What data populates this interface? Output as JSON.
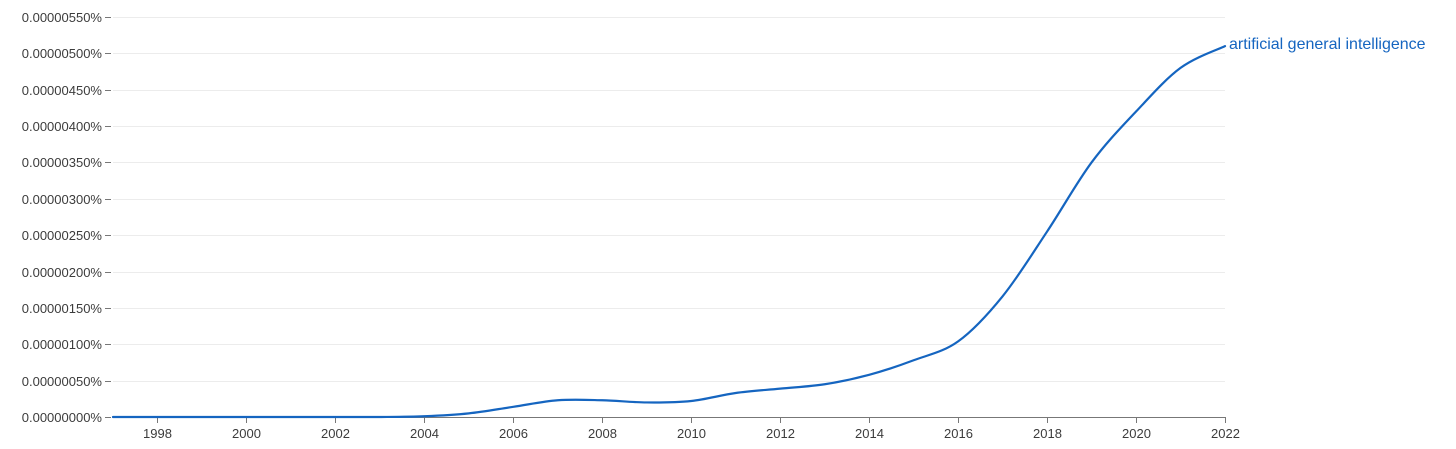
{
  "chart_data": {
    "type": "line",
    "title": "",
    "xlabel": "",
    "ylabel": "",
    "xlim": [
      1997,
      2022
    ],
    "ylim": [
      0,
      5.5e-06
    ],
    "grid": true,
    "legend": "end-of-line label",
    "x_ticks": [
      1998,
      2000,
      2002,
      2004,
      2006,
      2008,
      2010,
      2012,
      2014,
      2016,
      2018,
      2020,
      2022
    ],
    "x_tick_labels": [
      "1998",
      "2000",
      "2002",
      "2004",
      "2006",
      "2008",
      "2010",
      "2012",
      "2014",
      "2016",
      "2018",
      "2020",
      "2022"
    ],
    "y_ticks": [
      0,
      5e-07,
      1e-06,
      1.5e-06,
      2e-06,
      2.5e-06,
      3e-06,
      3.5e-06,
      4e-06,
      4.5e-06,
      5e-06,
      5.5e-06
    ],
    "y_tick_labels": [
      "0.00000000%",
      "0.00000050%",
      "0.00000100%",
      "0.00000150%",
      "0.00000200%",
      "0.00000250%",
      "0.00000300%",
      "0.00000350%",
      "0.00000400%",
      "0.00000450%",
      "0.00000500%",
      "0.00000550%"
    ],
    "series": [
      {
        "name": "artificial general intelligence",
        "color": "#1565c0",
        "x": [
          1997,
          1998,
          1999,
          2000,
          2001,
          2002,
          2003,
          2004,
          2005,
          2006,
          2007,
          2008,
          2009,
          2010,
          2011,
          2012,
          2013,
          2014,
          2015,
          2016,
          2017,
          2018,
          2019,
          2020,
          2021,
          2022
        ],
        "values": [
          0,
          0,
          0,
          0,
          0,
          0,
          0,
          1e-08,
          5e-08,
          1.4e-07,
          2.3e-07,
          2.3e-07,
          2e-07,
          2.2e-07,
          3.3e-07,
          3.9e-07,
          4.5e-07,
          5.8e-07,
          7.8e-07,
          1.04e-06,
          1.66e-06,
          2.55e-06,
          3.5e-06,
          4.2e-06,
          4.8e-06,
          5.1e-06
        ]
      }
    ]
  }
}
